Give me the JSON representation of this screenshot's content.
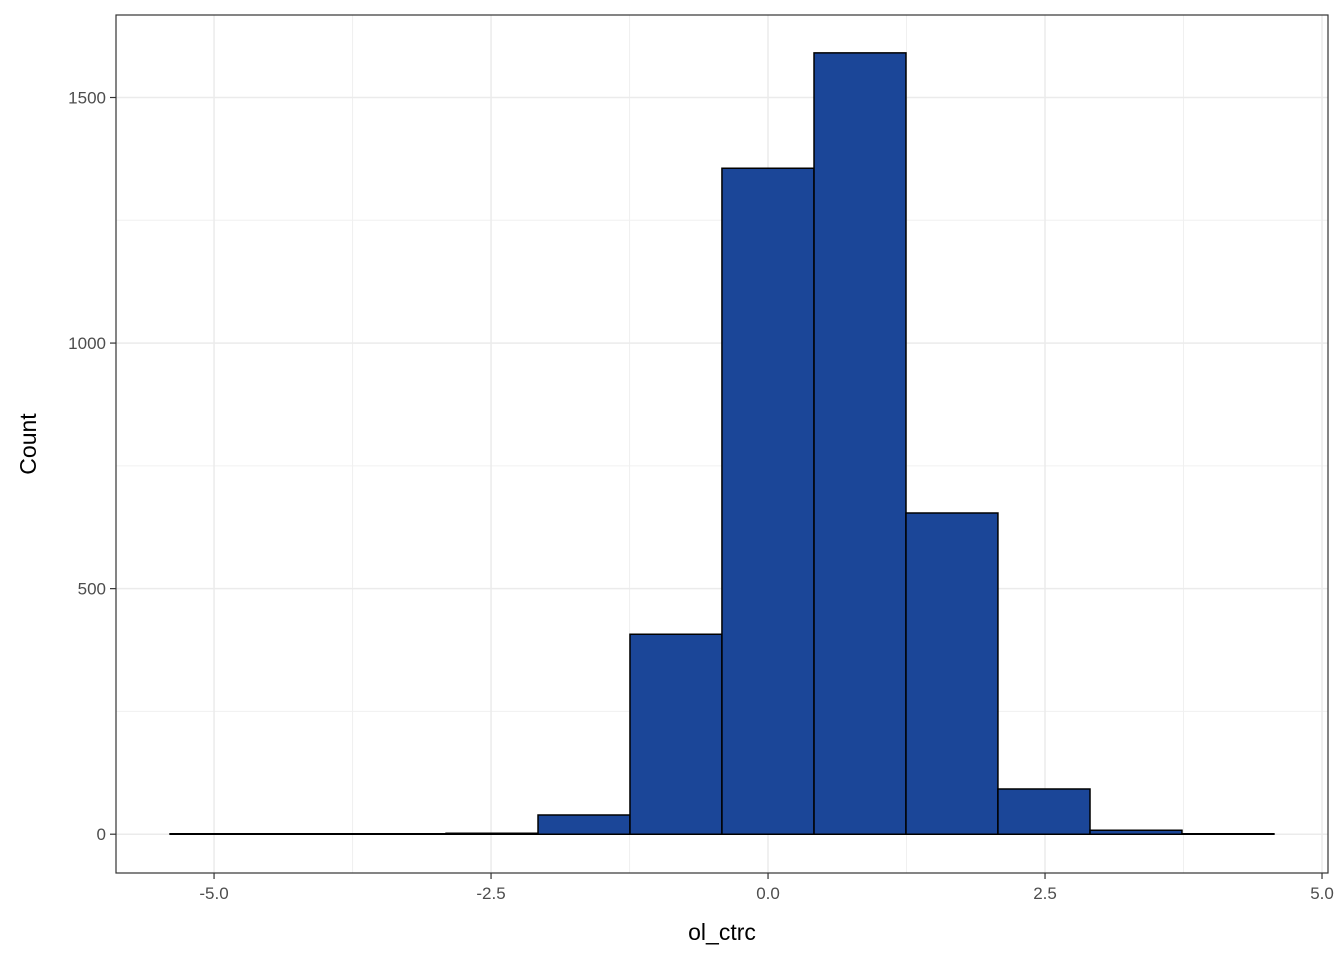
{
  "chart_data": {
    "type": "histogram",
    "x_label": "ol_ctrc",
    "y_label": "Count",
    "bins": [
      -5.397,
      -4.567,
      -3.737,
      -2.906,
      -2.076,
      -1.246,
      -0.416,
      0.415,
      1.245,
      2.075,
      2.906,
      3.736,
      4.566
    ],
    "values": [
      1,
      1,
      1,
      2,
      39,
      407,
      1356,
      1591,
      654,
      92,
      8,
      1
    ],
    "color": "#1b4698",
    "xlim": [
      -5.885,
      5.054
    ],
    "ylim": [
      -79,
      1668
    ],
    "xticks": [
      {
        "value": -5,
        "label": "-5.0"
      },
      {
        "value": -2.5,
        "label": "-2.5"
      },
      {
        "value": 0,
        "label": "0.0"
      },
      {
        "value": 2.5,
        "label": "2.5"
      },
      {
        "value": 5,
        "label": "5.0"
      }
    ],
    "yticks": [
      0,
      500,
      1000,
      1500
    ],
    "x_minor_ticks": [
      -3.75,
      -1.25,
      1.25,
      3.75
    ],
    "y_minor_ticks": [
      250,
      750,
      1250
    ],
    "grid": true
  }
}
